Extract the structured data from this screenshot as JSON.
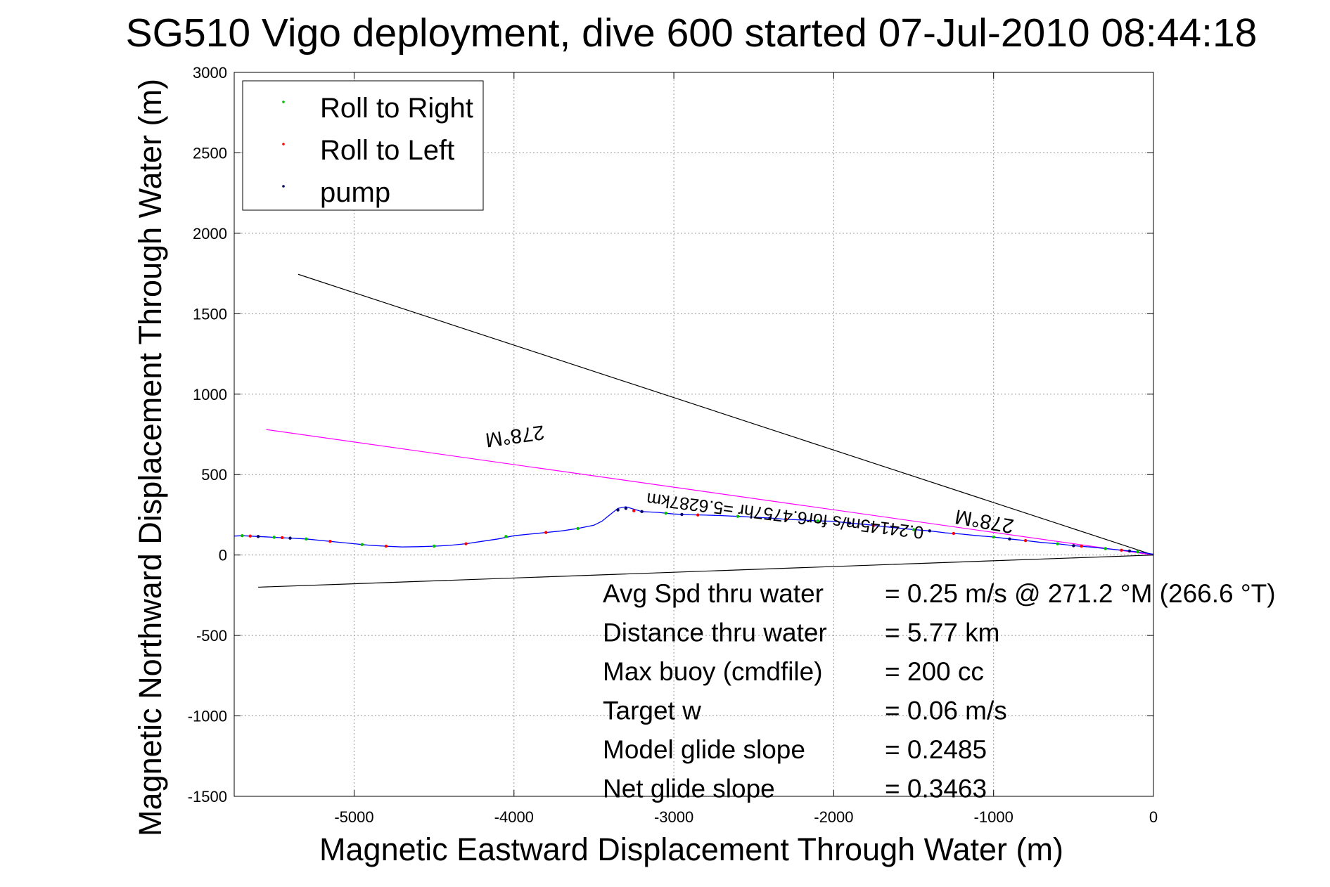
{
  "chart_data": {
    "type": "line",
    "title": "SG510 Vigo deployment, dive 600 started 07-Jul-2010 08:44:18",
    "xlabel": "Magnetic Eastward Displacement Through Water (m)",
    "ylabel": "Magnetic Northward Displacement Through Water (m)",
    "xlim": [
      -5750,
      0
    ],
    "ylim": [
      -1500,
      3000
    ],
    "xticks": [
      -5000,
      -4000,
      -3000,
      -2000,
      -1000,
      0
    ],
    "yticks": [
      -1500,
      -1000,
      -500,
      0,
      500,
      1000,
      1500,
      2000,
      2500,
      3000
    ],
    "grid": true,
    "legend": {
      "placement": "top-left",
      "entries": [
        {
          "label": "Roll to Right",
          "color": "#00c000"
        },
        {
          "label": "Roll to Left",
          "color": "#ff0000"
        },
        {
          "label": "pump",
          "color": "#000060"
        }
      ]
    },
    "track": {
      "color": "#0000ff",
      "x": [
        0,
        -100,
        -200,
        -300,
        -400,
        -500,
        -600,
        -700,
        -800,
        -900,
        -1000,
        -1100,
        -1200,
        -1300,
        -1400,
        -1500,
        -1600,
        -1700,
        -1800,
        -1900,
        -2000,
        -2100,
        -2200,
        -2300,
        -2400,
        -2500,
        -2600,
        -2700,
        -2800,
        -2900,
        -3000,
        -3100,
        -3200,
        -3300,
        -3350,
        -3400,
        -3450,
        -3500,
        -3600,
        -3700,
        -3800,
        -3900,
        -4000,
        -4100,
        -4200,
        -4300,
        -4400,
        -4500,
        -4600,
        -4700,
        -4800,
        -4900,
        -5000,
        -5100,
        -5200,
        -5300,
        -5400,
        -5500,
        -5600,
        -5700,
        -5750
      ],
      "y": [
        5,
        20,
        30,
        40,
        50,
        58,
        70,
        78,
        90,
        100,
        112,
        120,
        130,
        138,
        150,
        158,
        168,
        178,
        190,
        198,
        210,
        212,
        218,
        222,
        230,
        235,
        240,
        245,
        248,
        250,
        255,
        265,
        270,
        300,
        290,
        250,
        210,
        185,
        165,
        150,
        140,
        130,
        120,
        100,
        85,
        70,
        60,
        55,
        52,
        50,
        55,
        60,
        70,
        80,
        90,
        100,
        105,
        110,
        115,
        120,
        118
      ]
    },
    "markers": {
      "roll_right": {
        "x": [
          -100,
          -300,
          -600,
          -1000,
          -1500,
          -2100,
          -2600,
          -3050,
          -3600,
          -4050,
          -4500,
          -4950,
          -5300,
          -5500,
          -5700
        ],
        "y": [
          20,
          40,
          70,
          112,
          158,
          212,
          240,
          260,
          165,
          115,
          55,
          65,
          100,
          110,
          120
        ]
      },
      "roll_left": {
        "x": [
          -200,
          -450,
          -800,
          -1250,
          -1750,
          -2300,
          -2850,
          -3250,
          -3800,
          -4300,
          -4800,
          -5150,
          -5450,
          -5650
        ],
        "y": [
          30,
          55,
          90,
          134,
          184,
          222,
          249,
          275,
          140,
          70,
          55,
          85,
          108,
          118
        ]
      },
      "pump": {
        "x": [
          -150,
          -500,
          -900,
          -1400,
          -1900,
          -2400,
          -2950,
          -3200,
          -3300,
          -3350,
          -5400,
          -5600
        ],
        "y": [
          25,
          58,
          100,
          150,
          198,
          230,
          252,
          270,
          290,
          280,
          105,
          115
        ]
      }
    },
    "lines": [
      {
        "color": "#000000",
        "x": [
          -5350,
          0
        ],
        "y": [
          1745,
          0
        ]
      },
      {
        "color": "#ff00ff",
        "x": [
          -5550,
          0
        ],
        "y": [
          780,
          0
        ]
      },
      {
        "color": "#000000",
        "x": [
          -5600,
          0
        ],
        "y": [
          -200,
          0
        ]
      }
    ],
    "annotations": [
      {
        "text": "278°M",
        "x": -4000,
        "y": 780,
        "rotate": 172,
        "size": 29
      },
      {
        "text": "278°M",
        "x": -1050,
        "y": 250,
        "rotate": 190,
        "size": 29
      },
      {
        "text": "0.24145m/s for6.4757hr =5.6287km",
        "x": -2300,
        "y": 280,
        "rotate": 187,
        "size": 25
      }
    ],
    "stats": [
      {
        "label": "Avg Spd thru water",
        "value": "=  0.25 m/s @ 271.2 °M (266.6 °T)"
      },
      {
        "label": "Distance thru water",
        "value": "=  5.77 km"
      },
      {
        "label": "Max buoy (cmdfile)",
        "value": "= 200 cc"
      },
      {
        "label": "Target w",
        "value": "= 0.06 m/s"
      },
      {
        "label": "Model glide slope",
        "value": "= 0.2485"
      },
      {
        "label": "Net glide slope",
        "value": "= 0.3463"
      }
    ]
  }
}
